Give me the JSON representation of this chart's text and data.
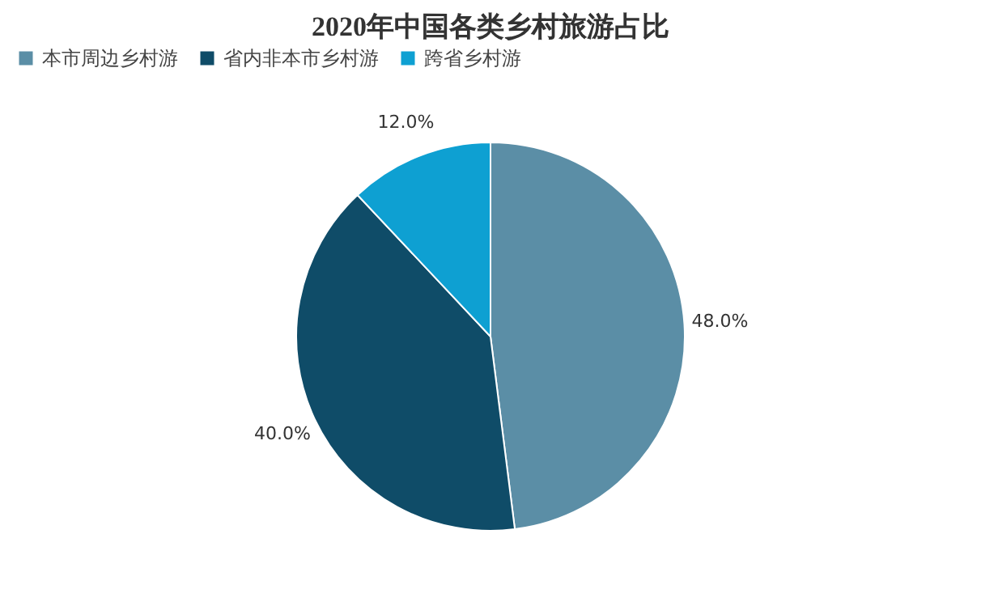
{
  "chart_data": {
    "type": "pie",
    "title": "2020年中国各类乡村旅游占比",
    "categories": [
      "本市周边乡村游",
      "省内非本市乡村游",
      "跨省乡村游"
    ],
    "values": [
      48,
      40,
      12
    ],
    "colors": [
      "#5b8ea6",
      "#0f4c68",
      "#0ea0d2"
    ],
    "value_labels": [
      "48.0%",
      "40.0%",
      "12.0%"
    ],
    "legend": "top"
  }
}
